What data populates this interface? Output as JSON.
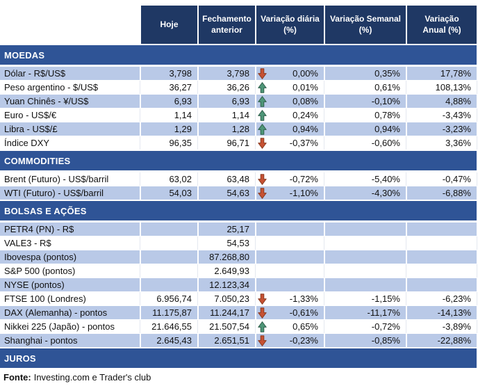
{
  "table": {
    "columns": [
      "Hoje",
      "Fechamento\nanterior",
      "Variação diária\n(%)",
      "Variação Semanal\n(%)",
      "Variação\nAnual (%)"
    ],
    "sections": [
      {
        "title": "MOEDAS",
        "first_row_shaded": true,
        "rows": [
          {
            "label": "Dólar - R$/US$",
            "hoje": "3,798",
            "fechamento": "3,798",
            "arrow": "down",
            "var_diaria": "0,00%",
            "var_semanal": "0,35%",
            "var_anual": "17,78%"
          },
          {
            "label": "Peso argentino - $/US$",
            "hoje": "36,27",
            "fechamento": "36,26",
            "arrow": "up",
            "var_diaria": "0,01%",
            "var_semanal": "0,61%",
            "var_anual": "108,13%"
          },
          {
            "label": "Yuan Chinês - ¥/US$",
            "hoje": "6,93",
            "fechamento": "6,93",
            "arrow": "up",
            "var_diaria": "0,08%",
            "var_semanal": "-0,10%",
            "var_anual": "4,88%"
          },
          {
            "label": "Euro - US$/€",
            "hoje": "1,14",
            "fechamento": "1,14",
            "arrow": "up",
            "var_diaria": "0,24%",
            "var_semanal": "0,78%",
            "var_anual": "-3,43%"
          },
          {
            "label": "Libra - US$/£",
            "hoje": "1,29",
            "fechamento": "1,28",
            "arrow": "up",
            "var_diaria": "0,94%",
            "var_semanal": "0,94%",
            "var_anual": "-3,23%"
          },
          {
            "label": "Índice DXY",
            "hoje": "96,35",
            "fechamento": "96,71",
            "arrow": "down",
            "var_diaria": "-0,37%",
            "var_semanal": "-0,60%",
            "var_anual": "3,36%"
          }
        ]
      },
      {
        "title": "COMMODITIES",
        "first_row_shaded": false,
        "rows": [
          {
            "label": "Brent (Futuro) - US$/barril",
            "hoje": "63,02",
            "fechamento": "63,48",
            "arrow": "down",
            "var_diaria": "-0,72%",
            "var_semanal": "-5,40%",
            "var_anual": "-0,47%"
          },
          {
            "label": "WTI (Futuro) - US$/barril",
            "hoje": "54,03",
            "fechamento": "54,63",
            "arrow": "down",
            "var_diaria": "-1,10%",
            "var_semanal": "-4,30%",
            "var_anual": "-6,88%"
          }
        ]
      },
      {
        "title": "BOLSAS E AÇÕES",
        "first_row_shaded": true,
        "rows": [
          {
            "label": "PETR4 (PN) - R$",
            "hoje": "",
            "fechamento": "25,17",
            "arrow": null,
            "var_diaria": "",
            "var_semanal": "",
            "var_anual": ""
          },
          {
            "label": "VALE3 - R$",
            "hoje": "",
            "fechamento": "54,53",
            "arrow": null,
            "var_diaria": "",
            "var_semanal": "",
            "var_anual": ""
          },
          {
            "label": "Ibovespa (pontos)",
            "hoje": "",
            "fechamento": "87.268,80",
            "arrow": null,
            "var_diaria": "",
            "var_semanal": "",
            "var_anual": ""
          },
          {
            "label": "S&P 500 (pontos)",
            "hoje": "",
            "fechamento": "2.649,93",
            "arrow": null,
            "var_diaria": "",
            "var_semanal": "",
            "var_anual": ""
          },
          {
            "label": "NYSE (pontos)",
            "hoje": "",
            "fechamento": "12.123,34",
            "arrow": null,
            "var_diaria": "",
            "var_semanal": "",
            "var_anual": ""
          },
          {
            "label": "FTSE 100 (Londres)",
            "hoje": "6.956,74",
            "fechamento": "7.050,23",
            "arrow": "down",
            "var_diaria": "-1,33%",
            "var_semanal": "-1,15%",
            "var_anual": "-6,23%"
          },
          {
            "label": "DAX (Alemanha) - pontos",
            "hoje": "11.175,87",
            "fechamento": "11.244,17",
            "arrow": "down",
            "var_diaria": "-0,61%",
            "var_semanal": "-11,17%",
            "var_anual": "-14,13%"
          },
          {
            "label": "Nikkei 225 (Japão) - pontos",
            "hoje": "21.646,55",
            "fechamento": "21.507,54",
            "arrow": "up",
            "var_diaria": "0,65%",
            "var_semanal": "-0,72%",
            "var_anual": "-3,89%"
          },
          {
            "label": "Shanghai - pontos",
            "hoje": "2.645,43",
            "fechamento": "2.651,51",
            "arrow": "down",
            "var_diaria": "-0,23%",
            "var_semanal": "-0,85%",
            "var_anual": "-22,88%"
          }
        ]
      },
      {
        "title": "JUROS",
        "first_row_shaded": true,
        "rows": []
      }
    ]
  },
  "footer": {
    "label": "Fonte:",
    "text": "Investing.com e Trader's club"
  },
  "colors": {
    "header_bg": "#1F3864",
    "section_bg": "#2F5496",
    "row_shade_bg": "#B9C9E7",
    "arrow_up": "#4E9678",
    "arrow_up_border": "#2F5F4B",
    "arrow_down": "#C65133",
    "arrow_down_border": "#8A3B20"
  }
}
